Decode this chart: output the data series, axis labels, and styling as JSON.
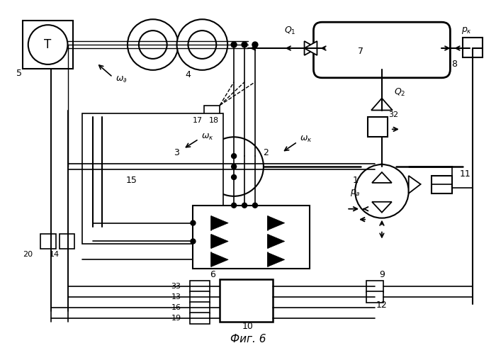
{
  "title": "Фиг. 6",
  "bg_color": "#ffffff",
  "fig_width": 7.0,
  "fig_height": 4.91,
  "dpi": 100
}
